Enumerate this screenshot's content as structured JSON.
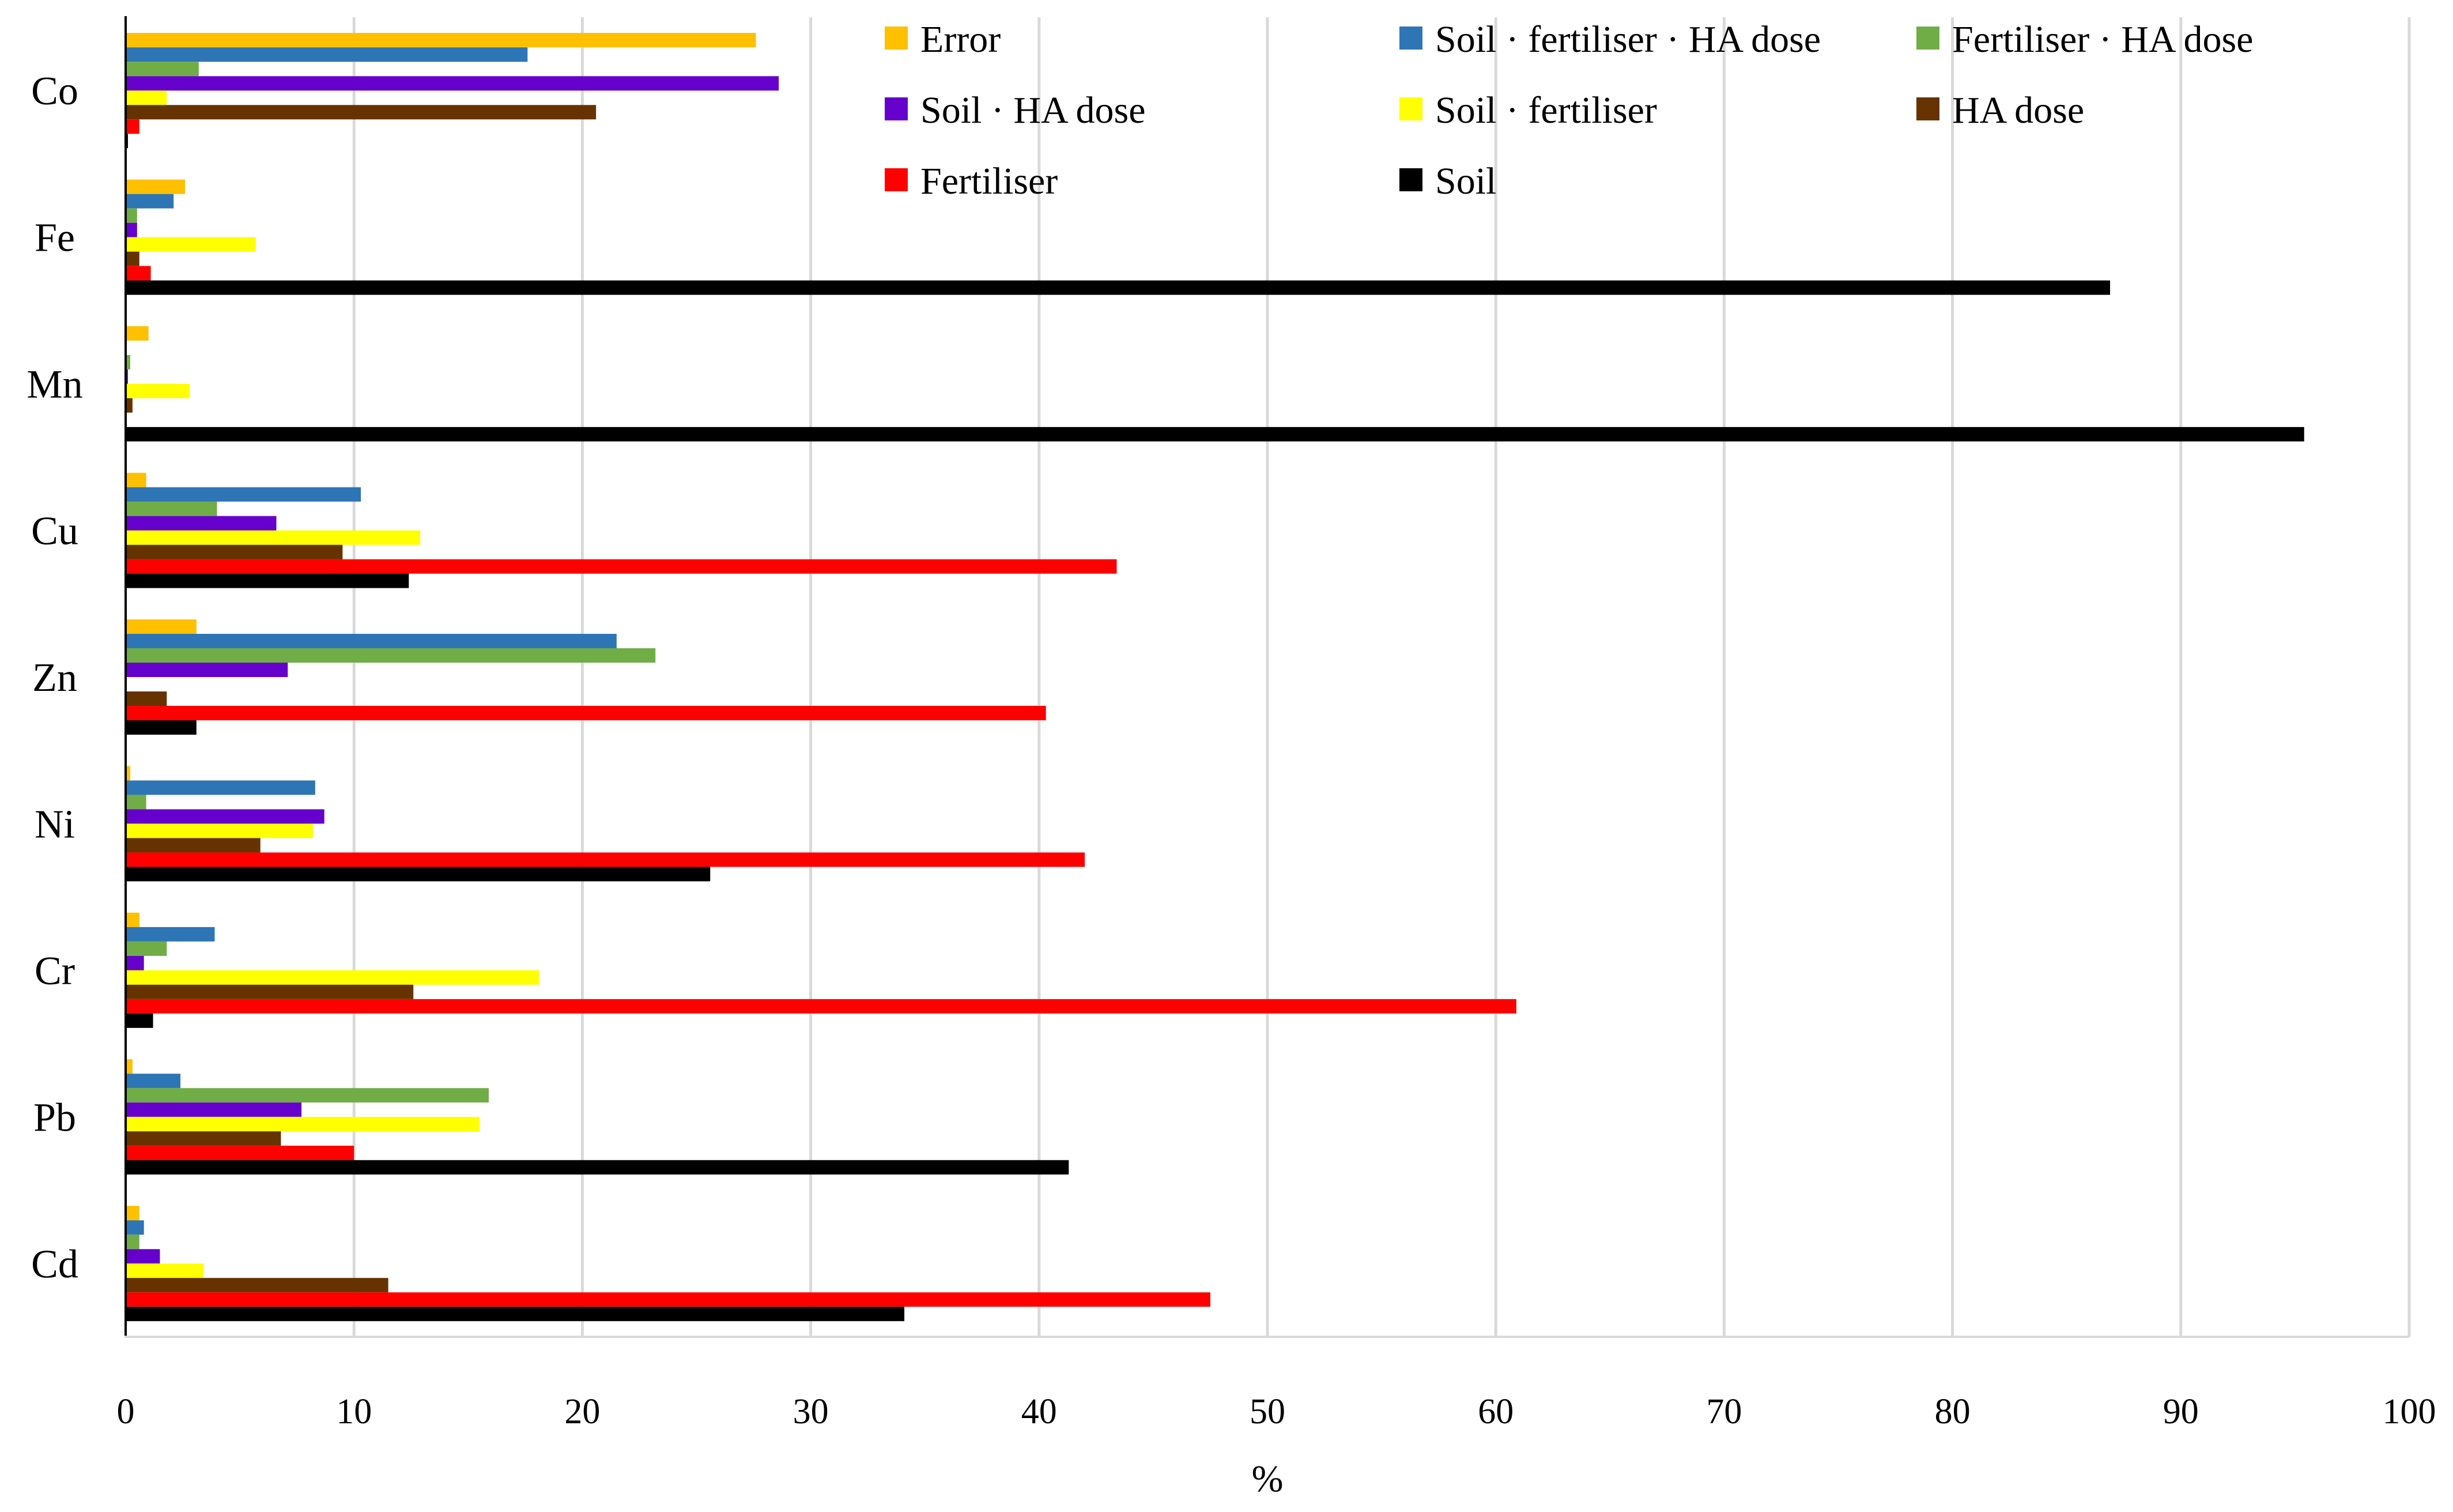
{
  "chart_data": {
    "type": "bar",
    "orientation": "horizontal",
    "title": "",
    "xlabel": "%",
    "ylabel": "",
    "xlim": [
      0,
      100
    ],
    "xticks": [
      0,
      10,
      20,
      30,
      40,
      50,
      60,
      70,
      80,
      90,
      100
    ],
    "grid": "vertical",
    "legend_position": "top-right",
    "categories": [
      "Co",
      "Fe",
      "Mn",
      "Cu",
      "Zn",
      "Ni",
      "Cr",
      "Pb",
      "Cd"
    ],
    "series": [
      {
        "name": "Error",
        "color": "#FFC000",
        "values": [
          27.6,
          2.6,
          1.0,
          0.9,
          3.1,
          0.2,
          0.6,
          0.3,
          0.6
        ]
      },
      {
        "name": "Soil · fertiliser · HA dose",
        "color": "#2E75B6",
        "values": [
          17.6,
          2.1,
          0.05,
          10.3,
          21.5,
          8.3,
          3.9,
          2.4,
          0.8
        ]
      },
      {
        "name": "Fertiliser · HA dose",
        "color": "#70AD47",
        "values": [
          3.2,
          0.5,
          0.2,
          4.0,
          23.2,
          0.9,
          1.8,
          15.9,
          0.6
        ]
      },
      {
        "name": "Soil · HA dose",
        "color": "#6600CC",
        "values": [
          28.6,
          0.5,
          0.1,
          6.6,
          7.1,
          8.7,
          0.8,
          7.7,
          1.5
        ]
      },
      {
        "name": "Soil · fertiliser",
        "color": "#FFFF00",
        "values": [
          1.8,
          5.7,
          2.8,
          12.9,
          0.05,
          8.2,
          18.1,
          15.5,
          3.4
        ]
      },
      {
        "name": "HA dose",
        "color": "#663300",
        "values": [
          20.6,
          0.6,
          0.3,
          9.5,
          1.8,
          5.9,
          12.6,
          6.8,
          11.5
        ]
      },
      {
        "name": "Fertiliser",
        "color": "#FF0000",
        "values": [
          0.6,
          1.1,
          0.05,
          43.4,
          40.3,
          42.0,
          60.9,
          10.0,
          47.5
        ]
      },
      {
        "name": "Soil",
        "color": "#000000",
        "values": [
          0.1,
          86.9,
          95.4,
          12.4,
          3.1,
          25.6,
          1.2,
          41.3,
          34.1
        ]
      }
    ]
  }
}
